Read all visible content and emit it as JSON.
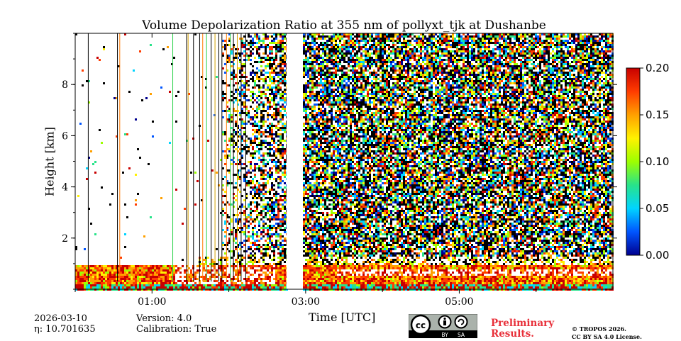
{
  "chart_data": {
    "type": "heatmap",
    "title": "Volume Depolarization Ratio at 355 nm of pollyxt_tjk at Dushanbe",
    "xlabel": "Time [UTC]",
    "ylabel": "Height [km]",
    "xlim": [
      0.0,
      7.0
    ],
    "ylim": [
      0,
      10
    ],
    "x_ticks": [
      {
        "value": 1.0,
        "label": "01:00"
      },
      {
        "value": 3.0,
        "label": "03:00"
      },
      {
        "value": 5.0,
        "label": "05:00"
      }
    ],
    "x_minor_ticks": [
      0.0,
      2.0,
      4.0,
      6.0
    ],
    "y_ticks": [
      {
        "value": 2,
        "label": "2"
      },
      {
        "value": 4,
        "label": "4"
      },
      {
        "value": 6,
        "label": "6"
      },
      {
        "value": 8,
        "label": "8"
      }
    ],
    "colorbar": {
      "min": 0.0,
      "max": 0.2,
      "ticks": [
        "0.00",
        "0.05",
        "0.10",
        "0.15",
        "0.20"
      ],
      "colors": [
        "#00008f",
        "#0055ff",
        "#00d4ff",
        "#28e38a",
        "#9dff00",
        "#fff200",
        "#ffa000",
        "#ff3c00",
        "#c80000"
      ]
    },
    "data_gap": {
      "start": 2.75,
      "end": 2.95
    },
    "aerosol_layer_top_km": 1.0,
    "noise_onset_time": 1.9,
    "vertical_streak_times": [
      0.17,
      0.55,
      0.58,
      1.27,
      1.45,
      1.47,
      1.54,
      1.62,
      1.66,
      1.71,
      1.77,
      1.82,
      1.87,
      1.91,
      1.97,
      2.02,
      2.06,
      2.11,
      2.16,
      2.22
    ]
  },
  "footer": {
    "date": "2026-03-10",
    "eta": "η: 10.701635",
    "version": "Version: 4.0",
    "calibration": "Calibration: True",
    "preliminary_line1": "Preliminary",
    "preliminary_line2": "Results.",
    "copyright_line1": "© TROPOS 2026.",
    "copyright_line2": "CC BY SA 4.0 License.",
    "license_badge": {
      "left": "BY",
      "right": "SA"
    }
  }
}
